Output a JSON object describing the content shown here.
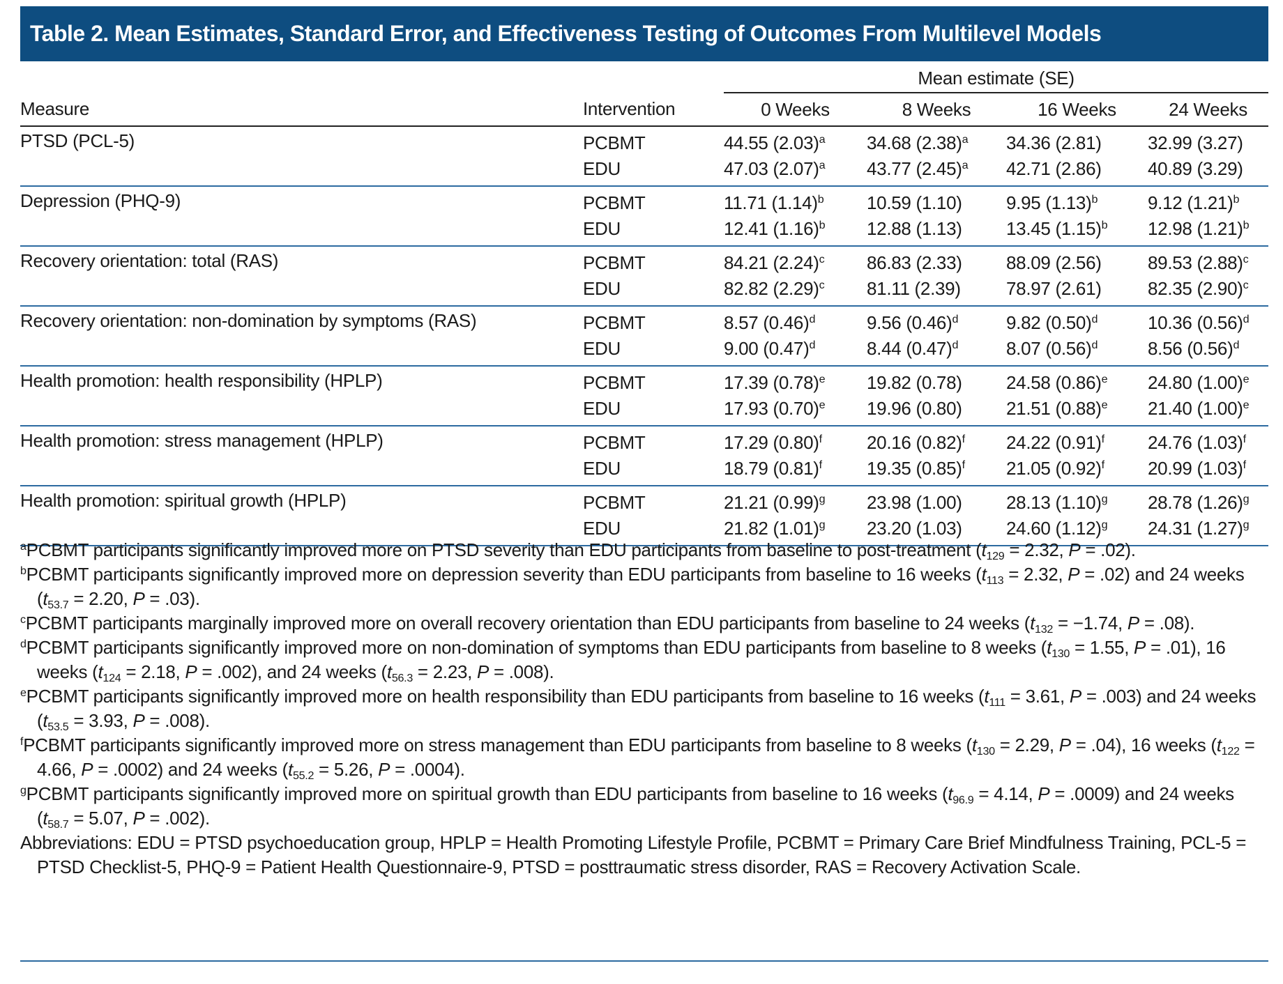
{
  "title": "Table 2. Mean Estimates, Standard Error, and Effectiveness Testing of Outcomes From Multilevel Models",
  "table": {
    "group_header": "Mean estimate (SE)",
    "columns": [
      "Measure",
      "Intervention",
      "0 Weeks",
      "8 Weeks",
      "16 Weeks",
      "24 Weeks"
    ],
    "rows": [
      {
        "measure": "PTSD (PCL-5)",
        "arms": [
          {
            "intervention": "PCBMT",
            "cells": [
              {
                "text": "44.55 (2.03)",
                "sup": "a"
              },
              {
                "text": "34.68 (2.38)",
                "sup": "a"
              },
              {
                "text": "34.36 (2.81)"
              },
              {
                "text": "32.99 (3.27)"
              }
            ]
          },
          {
            "intervention": "EDU",
            "cells": [
              {
                "text": "47.03 (2.07)",
                "sup": "a"
              },
              {
                "text": "43.77 (2.45)",
                "sup": "a"
              },
              {
                "text": "42.71 (2.86)"
              },
              {
                "text": "40.89 (3.29)"
              }
            ]
          }
        ]
      },
      {
        "measure": "Depression (PHQ-9)",
        "arms": [
          {
            "intervention": "PCBMT",
            "cells": [
              {
                "text": "11.71 (1.14)",
                "sup": "b"
              },
              {
                "text": "10.59 (1.10)"
              },
              {
                "text": "9.95 (1.13)",
                "sup": "b"
              },
              {
                "text": "9.12 (1.21)",
                "sup": "b"
              }
            ]
          },
          {
            "intervention": "EDU",
            "cells": [
              {
                "text": "12.41 (1.16)",
                "sup": "b"
              },
              {
                "text": "12.88 (1.13)"
              },
              {
                "text": "13.45 (1.15)",
                "sup": "b"
              },
              {
                "text": "12.98 (1.21)",
                "sup": "b"
              }
            ]
          }
        ]
      },
      {
        "measure": "Recovery orientation: total (RAS)",
        "arms": [
          {
            "intervention": "PCBMT",
            "cells": [
              {
                "text": "84.21 (2.24)",
                "sup": "c"
              },
              {
                "text": "86.83 (2.33)"
              },
              {
                "text": "88.09 (2.56)"
              },
              {
                "text": "89.53 (2.88)",
                "sup": "c"
              }
            ]
          },
          {
            "intervention": "EDU",
            "cells": [
              {
                "text": "82.82 (2.29)",
                "sup": "c"
              },
              {
                "text": "81.11 (2.39)"
              },
              {
                "text": "78.97 (2.61)"
              },
              {
                "text": "82.35 (2.90)",
                "sup": "c"
              }
            ]
          }
        ]
      },
      {
        "measure": "Recovery orientation: non-domination by symptoms (RAS)",
        "arms": [
          {
            "intervention": "PCBMT",
            "cells": [
              {
                "text": "8.57 (0.46)",
                "sup": "d"
              },
              {
                "text": "9.56 (0.46)",
                "sup": "d"
              },
              {
                "text": "9.82 (0.50)",
                "sup": "d"
              },
              {
                "text": "10.36 (0.56)",
                "sup": "d"
              }
            ]
          },
          {
            "intervention": "EDU",
            "cells": [
              {
                "text": "9.00 (0.47)",
                "sup": "d"
              },
              {
                "text": "8.44 (0.47)",
                "sup": "d"
              },
              {
                "text": "8.07 (0.56)",
                "sup": "d"
              },
              {
                "text": "8.56 (0.56)",
                "sup": "d"
              }
            ]
          }
        ]
      },
      {
        "measure": "Health promotion: health responsibility (HPLP)",
        "arms": [
          {
            "intervention": "PCBMT",
            "cells": [
              {
                "text": "17.39 (0.78)",
                "sup": "e"
              },
              {
                "text": "19.82 (0.78)"
              },
              {
                "text": "24.58 (0.86)",
                "sup": "e"
              },
              {
                "text": "24.80 (1.00)",
                "sup": "e"
              }
            ]
          },
          {
            "intervention": "EDU",
            "cells": [
              {
                "text": "17.93 (0.70)",
                "sup": "e"
              },
              {
                "text": "19.96 (0.80)"
              },
              {
                "text": "21.51 (0.88)",
                "sup": "e"
              },
              {
                "text": "21.40 (1.00)",
                "sup": "e"
              }
            ]
          }
        ]
      },
      {
        "measure": "Health promotion: stress management (HPLP)",
        "arms": [
          {
            "intervention": "PCBMT",
            "cells": [
              {
                "text": "17.29 (0.80)",
                "sup": "f"
              },
              {
                "text": "20.16 (0.82)",
                "sup": "f"
              },
              {
                "text": "24.22 (0.91)",
                "sup": "f"
              },
              {
                "text": "24.76 (1.03)",
                "sup": "f"
              }
            ]
          },
          {
            "intervention": "EDU",
            "cells": [
              {
                "text": "18.79 (0.81)",
                "sup": "f"
              },
              {
                "text": "19.35 (0.85)",
                "sup": "f"
              },
              {
                "text": "21.05 (0.92)",
                "sup": "f"
              },
              {
                "text": "20.99 (1.03)",
                "sup": "f"
              }
            ]
          }
        ]
      },
      {
        "measure": "Health promotion: spiritual growth (HPLP)",
        "arms": [
          {
            "intervention": "PCBMT",
            "cells": [
              {
                "text": "21.21 (0.99)",
                "sup": "g"
              },
              {
                "text": "23.98 (1.00)"
              },
              {
                "text": "28.13 (1.10)",
                "sup": "g"
              },
              {
                "text": "28.78 (1.26)",
                "sup": "g"
              }
            ]
          },
          {
            "intervention": "EDU",
            "cells": [
              {
                "text": "21.82 (1.01)",
                "sup": "g"
              },
              {
                "text": "23.20 (1.03)"
              },
              {
                "text": "24.60 (1.12)",
                "sup": "g"
              },
              {
                "text": "24.31 (1.27)",
                "sup": "g"
              }
            ]
          }
        ]
      }
    ]
  },
  "footnotes": [
    {
      "mark": "a",
      "parts": [
        "PCBMT participants significantly improved more on PTSD severity than EDU participants from baseline to post-treatment (",
        {
          "i": "t"
        },
        {
          "sub": "129"
        },
        " = 2.32, ",
        {
          "i": "P"
        },
        " = .02)."
      ]
    },
    {
      "mark": "b",
      "parts": [
        "PCBMT participants significantly improved more on depression severity than EDU participants from baseline to 16 weeks (",
        {
          "i": "t"
        },
        {
          "sub": "113"
        },
        " = 2.32, ",
        {
          "i": "P"
        },
        " = .02) and 24 weeks (",
        {
          "i": "t"
        },
        {
          "sub": "53.7"
        },
        " = 2.20, ",
        {
          "i": "P"
        },
        " = .03)."
      ]
    },
    {
      "mark": "c",
      "parts": [
        "PCBMT participants marginally improved more on overall recovery orientation than EDU participants from baseline to 24 weeks (",
        {
          "i": "t"
        },
        {
          "sub": "132"
        },
        " = −1.74, ",
        {
          "i": "P"
        },
        " = .08)."
      ]
    },
    {
      "mark": "d",
      "parts": [
        "PCBMT participants significantly improved more on non-domination of symptoms than EDU participants from baseline to 8 weeks (",
        {
          "i": "t"
        },
        {
          "sub": "130"
        },
        " = 1.55, ",
        {
          "i": "P"
        },
        " = .01), 16 weeks (",
        {
          "i": "t"
        },
        {
          "sub": "124"
        },
        " = 2.18, ",
        {
          "i": "P"
        },
        " = .002), and 24 weeks (",
        {
          "i": "t"
        },
        {
          "sub": "56.3"
        },
        " = 2.23, ",
        {
          "i": "P"
        },
        " = .008)."
      ]
    },
    {
      "mark": "e",
      "parts": [
        "PCBMT participants significantly improved more on health responsibility than EDU participants from baseline to 16 weeks (",
        {
          "i": "t"
        },
        {
          "sub": "111"
        },
        " = 3.61, ",
        {
          "i": "P"
        },
        " = .003) and 24 weeks (",
        {
          "i": "t"
        },
        {
          "sub": "53.5"
        },
        " = 3.93, ",
        {
          "i": "P"
        },
        " = .008)."
      ]
    },
    {
      "mark": "f",
      "parts": [
        "PCBMT participants significantly improved more on stress management than EDU participants from baseline to 8 weeks (",
        {
          "i": "t"
        },
        {
          "sub": "130"
        },
        " = 2.29, ",
        {
          "i": "P"
        },
        " = .04), 16 weeks (",
        {
          "i": "t"
        },
        {
          "sub": "122"
        },
        " = 4.66, ",
        {
          "i": "P"
        },
        " = .0002) and 24 weeks (",
        {
          "i": "t"
        },
        {
          "sub": "55.2"
        },
        " = 5.26, ",
        {
          "i": "P"
        },
        " = .0004)."
      ]
    },
    {
      "mark": "g",
      "parts": [
        "PCBMT participants significantly improved more on spiritual growth than EDU participants from baseline to 16 weeks (",
        {
          "i": "t"
        },
        {
          "sub": "96.9"
        },
        " = 4.14, ",
        {
          "i": "P"
        },
        " = .0009) and 24 weeks (",
        {
          "i": "t"
        },
        {
          "sub": "58.7"
        },
        " = 5.07, ",
        {
          "i": "P"
        },
        " = .002)."
      ]
    }
  ],
  "abbreviations": "Abbreviations: EDU = PTSD psychoeducation group, HPLP = Health Promoting Lifestyle Profile, PCBMT = Primary Care Brief Mindfulness Training, PCL-5 = PTSD Checklist-5, PHQ-9 = Patient Health Questionnaire-9, PTSD = posttraumatic stress disorder, RAS = Recovery Activation Scale."
}
